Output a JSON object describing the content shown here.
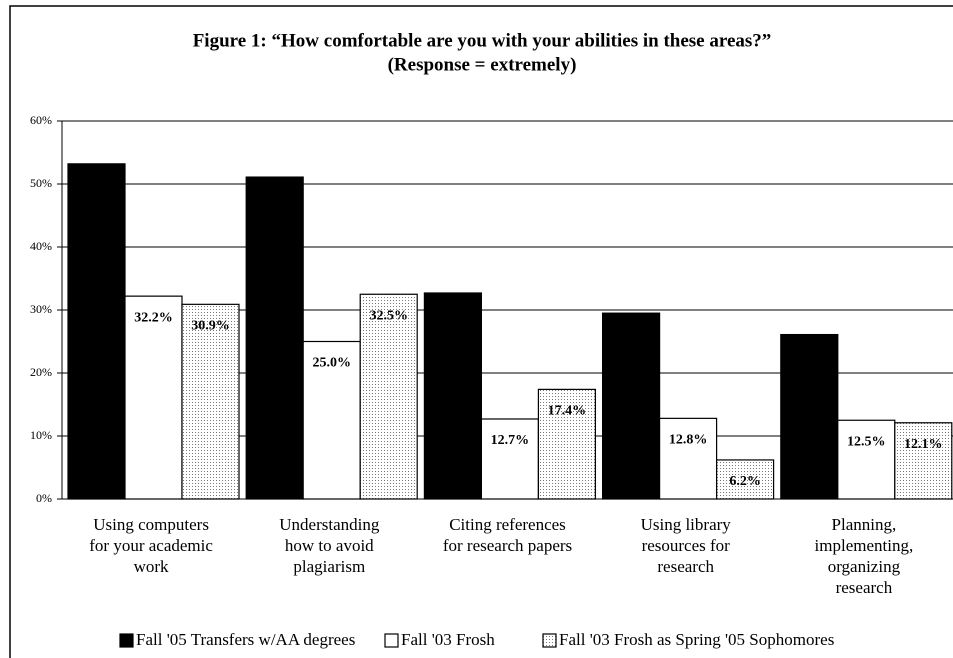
{
  "chart_data": {
    "type": "bar",
    "title": "Figure 1: “How comfortable are you with your abilities in these areas?”",
    "subtitle": "(Response = extremely)",
    "categories": [
      "Using computers\nfor your academic\nwork",
      "Understanding\nhow to avoid\nplagiarism",
      "Citing references\nfor research papers",
      "Using library\nresources for\nresearch",
      "Planning,\nimplementing,\norganizing\nresearch"
    ],
    "series": [
      {
        "name": "Fall '05 Transfers w/AA degrees",
        "color": "#000000",
        "values": [
          53.2,
          51.1,
          32.7,
          29.5,
          26.1
        ],
        "value_labels": [
          "53.2%",
          "51.1%",
          "32.7%",
          "29.5%",
          "26.1%"
        ]
      },
      {
        "name": "Fall '03 Frosh",
        "color": "#ffffff",
        "values": [
          32.2,
          25.0,
          12.7,
          12.8,
          12.5
        ],
        "value_labels": [
          "32.2%",
          "25.0%",
          "12.7%",
          "12.8%",
          "12.5%"
        ]
      },
      {
        "name": "Fall '03 Frosh as Spring '05 Sophomores",
        "color": "#ffffff",
        "pattern": "dots",
        "values": [
          30.9,
          32.5,
          17.4,
          6.2,
          12.1
        ],
        "value_labels": [
          "30.9%",
          "32.5%",
          "17.4%",
          "6.2%",
          "12.1%"
        ]
      }
    ],
    "ylim": [
      0,
      60
    ],
    "yticks": [
      {
        "value": 0,
        "label": "0%"
      },
      {
        "value": 10,
        "label": "10%"
      },
      {
        "value": 20,
        "label": "20%"
      },
      {
        "value": 30,
        "label": "30%"
      },
      {
        "value": 40,
        "label": "40%"
      },
      {
        "value": 50,
        "label": "50%"
      },
      {
        "value": 60,
        "label": "60%"
      }
    ],
    "grid": true,
    "legend": "bottom"
  }
}
